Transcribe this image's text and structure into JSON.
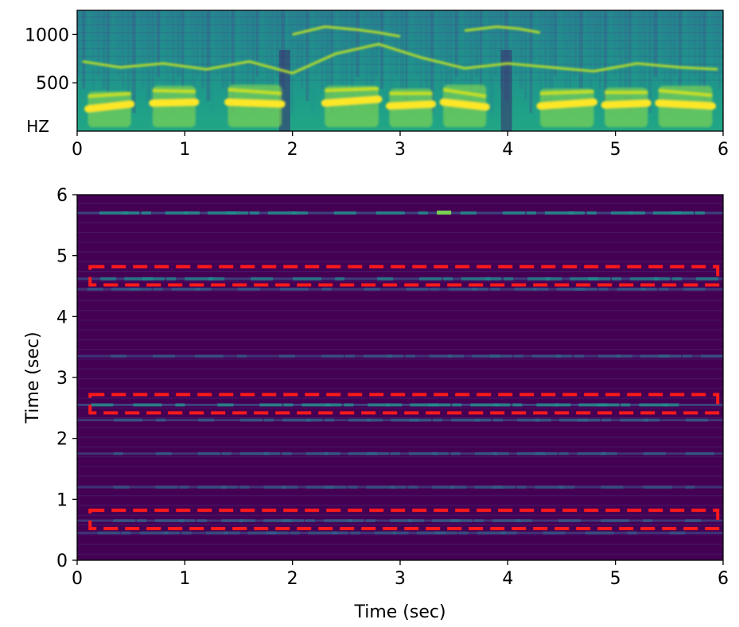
{
  "chart_data": [
    {
      "type": "heatmap",
      "name": "spectrogram",
      "colormap": "viridis",
      "x_ticks": [
        "0",
        "1",
        "2",
        "3",
        "4",
        "5",
        "6"
      ],
      "y_ticks": [
        "500",
        "1000"
      ],
      "y_unit_label": "HZ",
      "xlim": [
        0,
        6
      ],
      "ylim": [
        0,
        1250
      ],
      "xlabel": "",
      "ylabel": "",
      "formant_tracks": [
        {
          "x": [
            0.05,
            0.4,
            0.8,
            1.2,
            1.6,
            2.0,
            2.4,
            2.8,
            3.2,
            3.6,
            4.0,
            4.4,
            4.8,
            5.2,
            5.6,
            5.95
          ],
          "y": [
            720,
            660,
            700,
            640,
            720,
            600,
            800,
            900,
            760,
            650,
            700,
            660,
            620,
            700,
            660,
            640
          ]
        },
        {
          "x": [
            2.0,
            2.3,
            2.6,
            2.8,
            3.0
          ],
          "y": [
            1000,
            1080,
            1050,
            1020,
            980
          ]
        },
        {
          "x": [
            3.6,
            3.9,
            4.1,
            4.3
          ],
          "y": [
            1040,
            1080,
            1060,
            1020
          ]
        }
      ],
      "pitch_segments": [
        {
          "x": [
            0.1,
            0.5
          ],
          "y": [
            230,
            280
          ]
        },
        {
          "x": [
            0.7,
            1.1
          ],
          "y": [
            290,
            300
          ]
        },
        {
          "x": [
            1.4,
            1.9
          ],
          "y": [
            300,
            280
          ]
        },
        {
          "x": [
            2.3,
            2.8
          ],
          "y": [
            290,
            330
          ]
        },
        {
          "x": [
            2.9,
            3.3
          ],
          "y": [
            260,
            280
          ]
        },
        {
          "x": [
            3.4,
            3.8
          ],
          "y": [
            300,
            250
          ]
        },
        {
          "x": [
            4.3,
            4.8
          ],
          "y": [
            260,
            300
          ]
        },
        {
          "x": [
            4.9,
            5.3
          ],
          "y": [
            270,
            290
          ]
        },
        {
          "x": [
            5.4,
            5.9
          ],
          "y": [
            290,
            260
          ]
        }
      ]
    },
    {
      "type": "heatmap",
      "name": "self-similarity",
      "colormap": "viridis",
      "x_ticks": [
        "0",
        "1",
        "2",
        "3",
        "4",
        "5",
        "6"
      ],
      "y_ticks": [
        "0",
        "1",
        "2",
        "3",
        "4",
        "5",
        "6"
      ],
      "xlim": [
        0,
        6
      ],
      "ylim": [
        0,
        6
      ],
      "xlabel": "Time (sec)",
      "ylabel": "Time (sec)",
      "bands": [
        {
          "y": 5.7,
          "strength": 0.55
        },
        {
          "y": 4.62,
          "strength": 0.45
        },
        {
          "y": 4.45,
          "strength": 0.25
        },
        {
          "y": 3.35,
          "strength": 0.25
        },
        {
          "y": 2.55,
          "strength": 0.55
        },
        {
          "y": 2.3,
          "strength": 0.3
        },
        {
          "y": 1.75,
          "strength": 0.3
        },
        {
          "y": 1.2,
          "strength": 0.2
        },
        {
          "y": 0.65,
          "strength": 0.3
        },
        {
          "y": 0.45,
          "strength": 0.2
        }
      ],
      "highlight_regions": [
        {
          "x": [
            0.12,
            5.95
          ],
          "y": [
            0.52,
            0.82
          ],
          "color": "#ff1a1a"
        },
        {
          "x": [
            0.12,
            5.95
          ],
          "y": [
            2.42,
            2.72
          ],
          "color": "#ff1a1a"
        },
        {
          "x": [
            0.12,
            5.95
          ],
          "y": [
            4.52,
            4.82
          ],
          "color": "#ff1a1a"
        }
      ]
    }
  ]
}
